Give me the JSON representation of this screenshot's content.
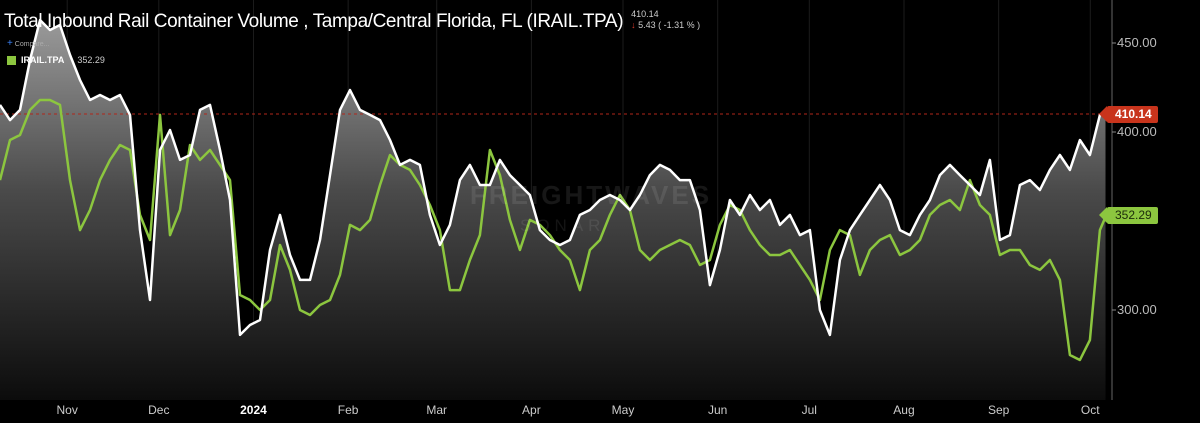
{
  "header": {
    "title": "Total Inbound Rail Container Volume , Tampa/Central Florida, FL (IRAIL.TPA)",
    "last_value": "410.14",
    "change": "5.43 ( -1.31 % )",
    "compare_label": "Compare...",
    "legend_name": "IRAIL.TPA",
    "legend_value": "352.29"
  },
  "watermark": {
    "line1": "FREIGHTWAVES",
    "line2": "SONAR"
  },
  "colors": {
    "primary": "#ffffff",
    "secondary": "#8cc63f",
    "last_line": "#c8341c",
    "background": "#000000"
  },
  "chart_data": {
    "type": "line",
    "title": "Total Inbound Rail Container Volume , Tampa/Central Florida, FL (IRAIL.TPA)",
    "xlabel": "",
    "ylabel": "",
    "x_start": "2023-10-10",
    "x_step_days": 3.274,
    "x_range_days": [
      0,
      362
    ],
    "ylim": [
      255,
      465
    ],
    "y_ticks": [
      {
        "value": 300,
        "label": "300.00"
      },
      {
        "value": 400,
        "label": "400.00"
      },
      {
        "value": 450,
        "label": "450.00"
      }
    ],
    "x_ticks": [
      {
        "day": 22,
        "label": "Nov"
      },
      {
        "day": 52,
        "label": "Dec"
      },
      {
        "day": 83,
        "label": "2024",
        "year": true
      },
      {
        "day": 114,
        "label": "Feb"
      },
      {
        "day": 143,
        "label": "Mar"
      },
      {
        "day": 174,
        "label": "Apr"
      },
      {
        "day": 204,
        "label": "May"
      },
      {
        "day": 235,
        "label": "Jun"
      },
      {
        "day": 265,
        "label": "Jul"
      },
      {
        "day": 296,
        "label": "Aug"
      },
      {
        "day": 327,
        "label": "Sep"
      },
      {
        "day": 357,
        "label": "Oct"
      }
    ],
    "series": [
      {
        "name": "Total Inbound Rail Container Volume (current)",
        "color": "#ffffff",
        "last": 410.14,
        "last_label": "410.14",
        "values": [
          415.2,
          406.7,
          412.4,
          440.4,
          462.9,
          457.3,
          460.1,
          443.3,
          429.2,
          418.0,
          420.8,
          418.0,
          420.8,
          409.6,
          344.9,
          305.6,
          389.9,
          401.1,
          384.3,
          387.1,
          412.4,
          415.2,
          389.9,
          361.8,
          286.0,
          291.6,
          294.4,
          333.7,
          353.4,
          330.9,
          316.9,
          316.9,
          339.3,
          375.8,
          412.4,
          423.6,
          412.4,
          409.6,
          406.7,
          395.5,
          381.5,
          384.3,
          381.5,
          353.4,
          336.5,
          347.8,
          373.0,
          381.5,
          370.2,
          370.2,
          384.3,
          375.8,
          370.2,
          364.6,
          344.9,
          339.3,
          336.5,
          339.3,
          353.4,
          356.2,
          361.8,
          364.6,
          361.8,
          356.2,
          364.6,
          375.8,
          381.5,
          378.7,
          373.0,
          373.0,
          356.2,
          314.0,
          333.7,
          361.8,
          353.4,
          364.6,
          356.2,
          361.8,
          347.8,
          353.4,
          342.1,
          344.9,
          300.0,
          286.0,
          328.1,
          344.9,
          353.4,
          361.8,
          370.2,
          361.8,
          344.9,
          342.1,
          353.4,
          361.8,
          375.8,
          381.5,
          375.8,
          370.2,
          364.6,
          384.3,
          339.3,
          342.1,
          370.2,
          373.0,
          367.4,
          378.7,
          387.1,
          378.7,
          395.5,
          387.1,
          409.6,
          410.14
        ]
      },
      {
        "name": "IRAIL.TPA",
        "color": "#8cc63f",
        "last": 352.29,
        "last_label": "352.29",
        "values": [
          373.0,
          395.5,
          398.3,
          412.4,
          418.0,
          418.0,
          415.2,
          373.0,
          344.9,
          356.2,
          373.0,
          384.3,
          392.7,
          389.9,
          353.4,
          339.3,
          409.6,
          342.1,
          356.2,
          392.7,
          384.3,
          389.9,
          381.5,
          373.0,
          308.4,
          305.6,
          300.0,
          305.6,
          336.5,
          322.5,
          300.0,
          297.2,
          302.8,
          305.6,
          319.7,
          347.8,
          344.9,
          350.6,
          370.2,
          387.1,
          381.5,
          378.7,
          370.2,
          359.0,
          344.9,
          311.2,
          311.2,
          328.1,
          342.1,
          389.9,
          375.8,
          350.6,
          333.7,
          350.6,
          347.8,
          342.1,
          333.7,
          328.1,
          311.2,
          333.7,
          339.3,
          353.4,
          364.6,
          356.2,
          333.7,
          328.1,
          333.7,
          336.5,
          339.3,
          336.5,
          325.3,
          328.1,
          347.8,
          359.0,
          356.2,
          344.9,
          336.5,
          330.9,
          330.9,
          333.7,
          325.3,
          316.9,
          305.6,
          333.7,
          344.9,
          342.1,
          319.7,
          333.7,
          339.3,
          342.1,
          330.9,
          333.7,
          339.3,
          353.4,
          359.0,
          361.8,
          356.2,
          373.0,
          359.0,
          353.4,
          330.9,
          333.7,
          333.7,
          325.3,
          322.5,
          328.1,
          316.9,
          274.7,
          271.9,
          283.1,
          344.9,
          352.29
        ]
      }
    ]
  }
}
